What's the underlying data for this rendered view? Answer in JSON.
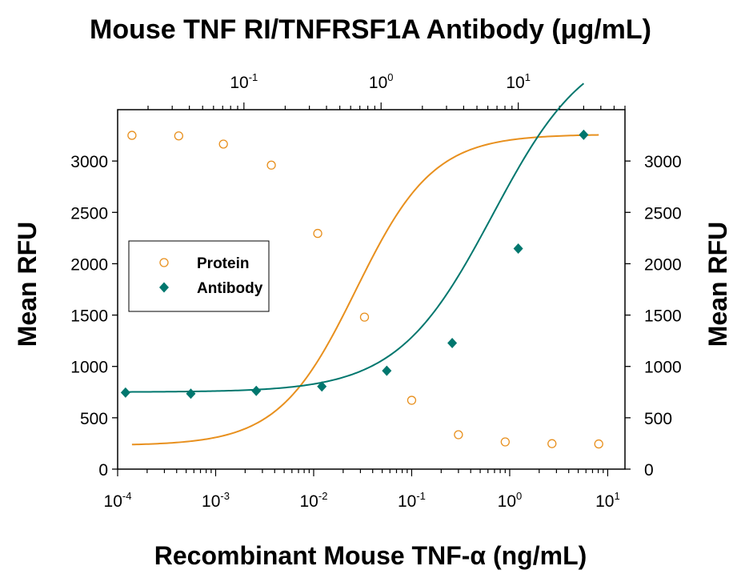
{
  "chart_data": {
    "type": "scatter",
    "title": "Mouse TNF RI/TNFRSF1A Antibody (μg/mL)",
    "xlabel": "Recombinant Mouse TNF-α (ng/mL)",
    "ylabel": "Mean RFU",
    "ylabel_right": "Mean RFU",
    "x_scale": "log",
    "xlim": [
      0.0001,
      15
    ],
    "x_ticks": [
      0.0001,
      0.001,
      0.01,
      0.1,
      1,
      10
    ],
    "x_tick_labels": [
      {
        "base": "10",
        "exp": "-4"
      },
      {
        "base": "10",
        "exp": "-3"
      },
      {
        "base": "10",
        "exp": "-2"
      },
      {
        "base": "10",
        "exp": "-1"
      },
      {
        "base": "10",
        "exp": "0"
      },
      {
        "base": "10",
        "exp": "1"
      }
    ],
    "x2_scale": "log",
    "x2lim": [
      0.012,
      60
    ],
    "x2_ticks": [
      0.1,
      1,
      10
    ],
    "x2_tick_labels": [
      {
        "base": "10",
        "exp": "-1"
      },
      {
        "base": "10",
        "exp": "0"
      },
      {
        "base": "10",
        "exp": "1"
      }
    ],
    "ylim": [
      0,
      3500
    ],
    "y_ticks": [
      0,
      500,
      1000,
      1500,
      2000,
      2500,
      3000
    ],
    "y_tick_labels": [
      "0",
      "500",
      "1000",
      "1500",
      "2000",
      "2500",
      "3000"
    ],
    "y_tick_labels_right": [
      "0",
      "500",
      "1000",
      "1500",
      "2000",
      "2500",
      "3000"
    ],
    "grid": false,
    "legend_position": "middle-left",
    "series": [
      {
        "name": "Protein",
        "axis": "bottom",
        "marker": "open-circle",
        "color": "#E8901E",
        "x": [
          0.00014,
          0.00042,
          0.0012,
          0.0037,
          0.011,
          0.033,
          0.1,
          0.3,
          0.9,
          2.7,
          8.1
        ],
        "y": [
          3250,
          3245,
          3165,
          2960,
          2295,
          1480,
          670,
          335,
          265,
          248,
          245
        ],
        "fit": {
          "model": "4PL",
          "bottom": 230,
          "top": 3260,
          "ec50": 0.027,
          "hill": 1.1
        }
      },
      {
        "name": "Antibody",
        "axis": "top",
        "marker": "filled-diamond",
        "color": "#00776E",
        "x": [
          0.0137,
          0.041,
          0.123,
          0.37,
          1.1,
          3.3,
          10,
          30
        ],
        "y": [
          745,
          735,
          762,
          805,
          958,
          1228,
          2148,
          3255
        ],
        "fit": {
          "model": "4PL",
          "bottom": 750,
          "top": 4200,
          "ec50": 6.5,
          "hill": 1.25
        }
      }
    ]
  }
}
